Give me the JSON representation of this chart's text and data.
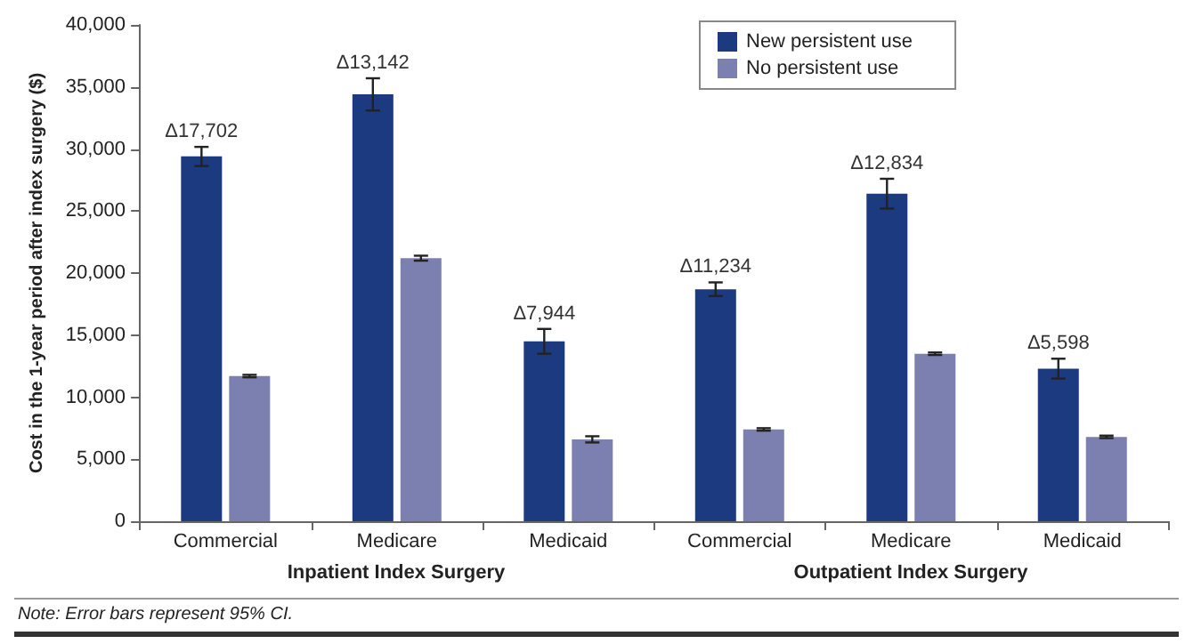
{
  "chart_data": {
    "type": "bar",
    "ylabel": "Cost in the 1-year period after index surgery ($)",
    "categories": [
      "Commercial",
      "Medicare",
      "Medicaid",
      "Commercial",
      "Medicare",
      "Medicaid"
    ],
    "series": [
      {
        "name": "New persistent use",
        "color": "#1c3a80",
        "values": [
          29400,
          34400,
          14500,
          18700,
          26400,
          12300
        ],
        "errors": [
          770,
          1300,
          1000,
          550,
          1200,
          800
        ]
      },
      {
        "name": "No persistent use",
        "color": "#7b80b0",
        "values": [
          11700,
          21200,
          6600,
          7400,
          13500,
          6800
        ],
        "errors": [
          100,
          200,
          250,
          100,
          100,
          100
        ]
      }
    ],
    "annotations": [
      {
        "text": "Δ17,702",
        "y": 30170
      },
      {
        "text": "Δ13,142",
        "y": 35700
      },
      {
        "text": "Δ7,944",
        "y": 15500
      },
      {
        "text": "Δ11,234",
        "y": 19250
      },
      {
        "text": "Δ12,834",
        "y": 27600
      },
      {
        "text": "Δ5,598",
        "y": 13100
      },
      "Inpatient Index Surgery",
      "Outpatient Index Surgery",
      "Note: Error bars represent 95% CI."
    ],
    "ylim": [
      0,
      40000
    ],
    "yticks": [
      0,
      {
        "value": 5000,
        "label": "5,000"
      },
      {
        "value": 10000,
        "label": "10,000"
      },
      {
        "value": 15000,
        "label": "15,000"
      },
      {
        "value": 20000,
        "label": "20,000"
      },
      {
        "value": 25000,
        "label": "25,000"
      },
      {
        "value": 30000,
        "label": "30,000"
      },
      {
        "value": 35000,
        "label": "35,000"
      },
      {
        "value": 40000,
        "label": "40,000"
      }
    ],
    "grid": false,
    "legend": "top right"
  }
}
